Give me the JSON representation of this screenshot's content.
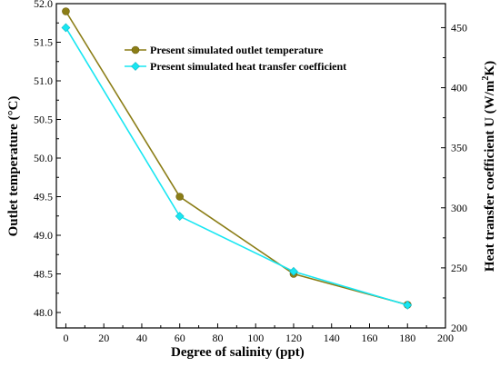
{
  "chart_data": {
    "type": "line",
    "x": [
      0,
      60,
      120,
      180
    ],
    "xlabel": "Degree of salinity (ppt)",
    "ylabel_left": "Outlet temperature (°C)",
    "ylabel_right_parts": [
      "Heat transfer coefficient U (W/m",
      "2",
      "K)"
    ],
    "xlim": [
      -5,
      200
    ],
    "ylim_left": [
      47.8,
      52.0
    ],
    "ylim_right": [
      200,
      470
    ],
    "x_ticks": [
      "0",
      "20",
      "40",
      "60",
      "80",
      "100",
      "120",
      "140",
      "160",
      "180",
      "200"
    ],
    "y_left_ticks": [
      "48.0",
      "48.5",
      "49.0",
      "49.5",
      "50.0",
      "50.5",
      "51.0",
      "51.5",
      "52.0"
    ],
    "y_right_ticks": [
      "200",
      "250",
      "300",
      "350",
      "400",
      "450"
    ],
    "legend_position": "top-right",
    "series": [
      {
        "name": "Present simulated outlet temperature",
        "axis": "left",
        "values": [
          51.9,
          49.5,
          48.5,
          48.1
        ],
        "color": "#8b7d16",
        "marker": "circle"
      },
      {
        "name": "Present simulated heat transfer coefficient",
        "axis": "right",
        "values": [
          450,
          293,
          247,
          219
        ],
        "color": "#18e6f2",
        "marker": "diamond"
      }
    ]
  }
}
